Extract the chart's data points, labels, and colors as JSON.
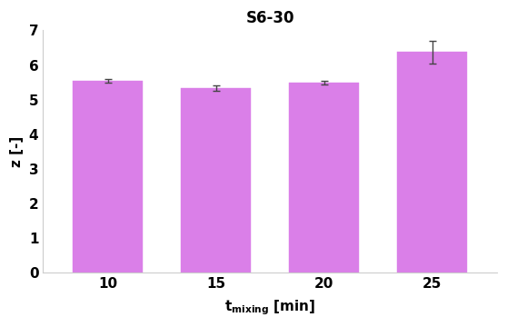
{
  "title": "S6-30",
  "ylabel": "z [-]",
  "categories": [
    "10",
    "15",
    "20",
    "25"
  ],
  "values": [
    5.55,
    5.32,
    5.49,
    6.37
  ],
  "errors": [
    0.05,
    0.08,
    0.05,
    0.32
  ],
  "bar_color": "#DA7FE8",
  "bar_edgecolor": "#DA7FE8",
  "error_color": "#444444",
  "ylim": [
    0,
    7
  ],
  "yticks": [
    0,
    1,
    2,
    3,
    4,
    5,
    6,
    7
  ],
  "bar_width": 0.65,
  "background_color": "#ffffff",
  "title_fontsize": 12,
  "axis_fontsize": 11,
  "tick_fontsize": 11,
  "spine_color": "#cccccc"
}
